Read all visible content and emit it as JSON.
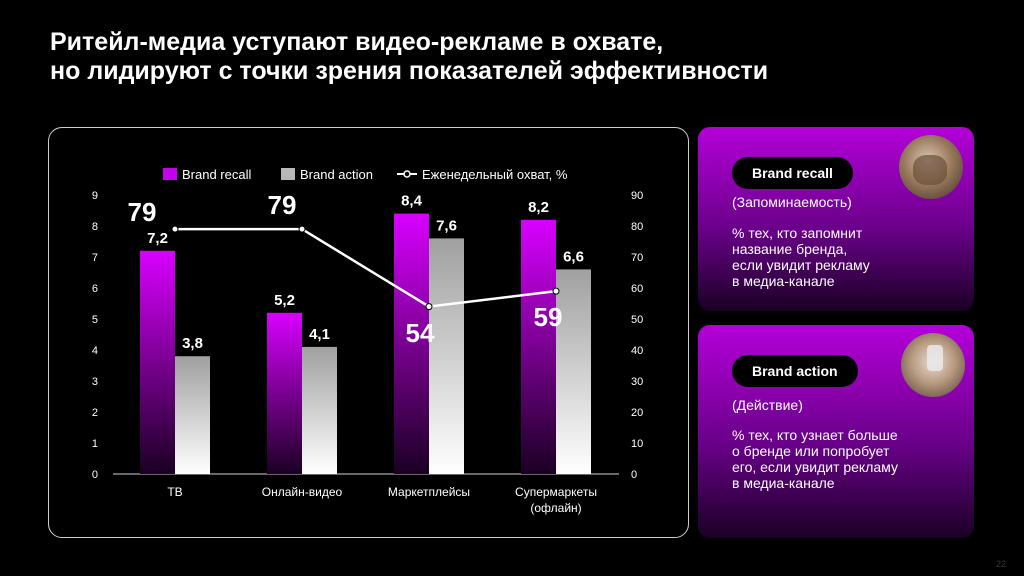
{
  "title_line1": "Ритейл-медиа уступают видео-рекламе в охвате,",
  "title_line2": "но лидируют с точки зрения показателей эффективности",
  "chart_data": {
    "type": "bar",
    "categories": [
      "ТВ",
      "Онлайн-видео",
      "Маркетплейсы",
      "Супермаркеты (офлайн)"
    ],
    "category_lines": [
      [
        "ТВ"
      ],
      [
        "Онлайн-видео"
      ],
      [
        "Маркетплейсы"
      ],
      [
        "Супермаркеты",
        "(офлайн)"
      ]
    ],
    "series": [
      {
        "name": "Brand recall",
        "type": "bar",
        "axis": "left",
        "values": [
          7.2,
          5.2,
          8.4,
          8.2
        ],
        "labels": [
          "7,2",
          "5,2",
          "8,4",
          "8,2"
        ],
        "color": "#d400ff"
      },
      {
        "name": "Brand action",
        "type": "bar",
        "axis": "left",
        "values": [
          3.8,
          4.1,
          7.6,
          6.6
        ],
        "labels": [
          "3,8",
          "4,1",
          "7,6",
          "6,6"
        ],
        "color": "#bdbdbd"
      },
      {
        "name": "Еженедельный охват, %",
        "type": "line",
        "axis": "right",
        "values": [
          79,
          79,
          54,
          59
        ],
        "labels": [
          "79",
          "79",
          "54",
          "59"
        ],
        "color": "#ffffff"
      }
    ],
    "ylim_left": [
      0,
      9
    ],
    "yticks_left": [
      "0",
      "1",
      "2",
      "3",
      "4",
      "5",
      "6",
      "7",
      "8",
      "9"
    ],
    "ylim_right": [
      0,
      90
    ],
    "yticks_right": [
      "0",
      "10",
      "20",
      "30",
      "40",
      "50",
      "60",
      "70",
      "80",
      "90"
    ],
    "legend_position": "top",
    "grid": false
  },
  "cards": [
    {
      "pill": "Brand recall",
      "sub": "(Запоминаемость)",
      "desc": [
        "% тех, кто запомнит",
        "название бренда,",
        "если увидит рекламу",
        "в медиа-канале"
      ]
    },
    {
      "pill": "Brand action",
      "sub": "(Действие)",
      "desc": [
        "% тех, кто узнает больше",
        "о бренде или попробует",
        "его, если увидит рекламу",
        "в медиа-канале"
      ]
    }
  ],
  "page_number": "22"
}
